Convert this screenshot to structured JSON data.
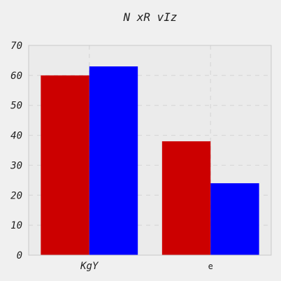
{
  "chart_data": {
    "type": "bar",
    "title": "N xR vIz",
    "xlabel": "",
    "ylabel": "",
    "categories": [
      "KgY",
      "e"
    ],
    "series": [
      {
        "color": "#cc0000",
        "values": [
          60,
          38
        ]
      },
      {
        "color": "#0000ff",
        "values": [
          63,
          24
        ]
      }
    ],
    "ylim": [
      0,
      70
    ],
    "yticks": [
      0,
      10,
      20,
      30,
      40,
      50,
      60,
      70
    ],
    "grid": true,
    "legend": "none"
  },
  "colors": {
    "background": "#f0f0f0",
    "plot_background": "#ebebeb",
    "grid": "#d8d8d8"
  }
}
